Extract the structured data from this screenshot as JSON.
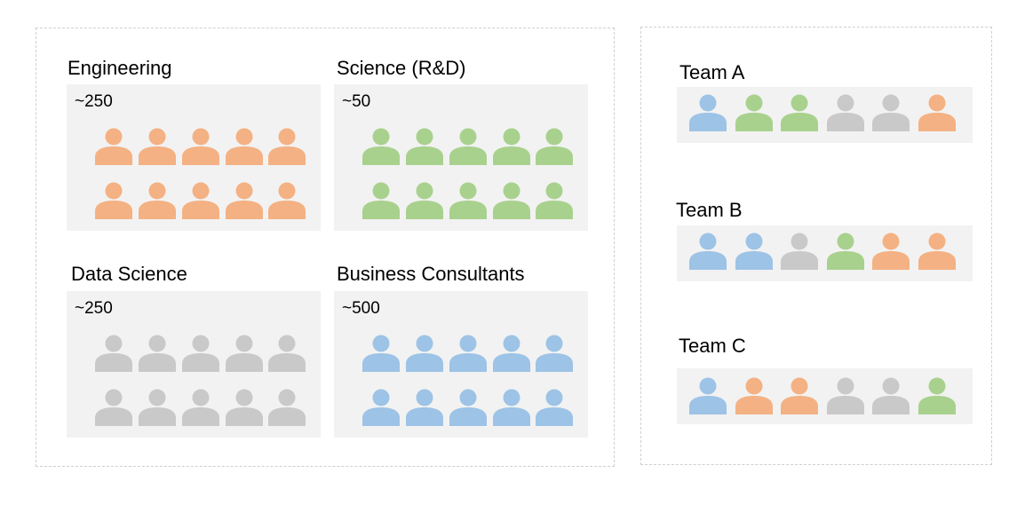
{
  "colors": {
    "orange": "#F4B183",
    "green": "#A9D18E",
    "gray": "#C9C9C9",
    "blue": "#9DC3E6"
  },
  "departments": [
    {
      "name": "Engineering",
      "count": "~250",
      "color": "orange",
      "icons": 10
    },
    {
      "name": "Science (R&D)",
      "count": "~50",
      "color": "green",
      "icons": 10
    },
    {
      "name": "Data Science",
      "count": "~250",
      "color": "gray",
      "icons": 10
    },
    {
      "name": "Business Consultants",
      "count": "~500",
      "color": "blue",
      "icons": 10
    }
  ],
  "teams": [
    {
      "name": "Team A",
      "members": [
        "blue",
        "green",
        "green",
        "gray",
        "gray",
        "orange"
      ]
    },
    {
      "name": "Team B",
      "members": [
        "blue",
        "blue",
        "gray",
        "green",
        "orange",
        "orange"
      ]
    },
    {
      "name": "Team C",
      "members": [
        "blue",
        "orange",
        "orange",
        "gray",
        "gray",
        "green"
      ]
    }
  ]
}
